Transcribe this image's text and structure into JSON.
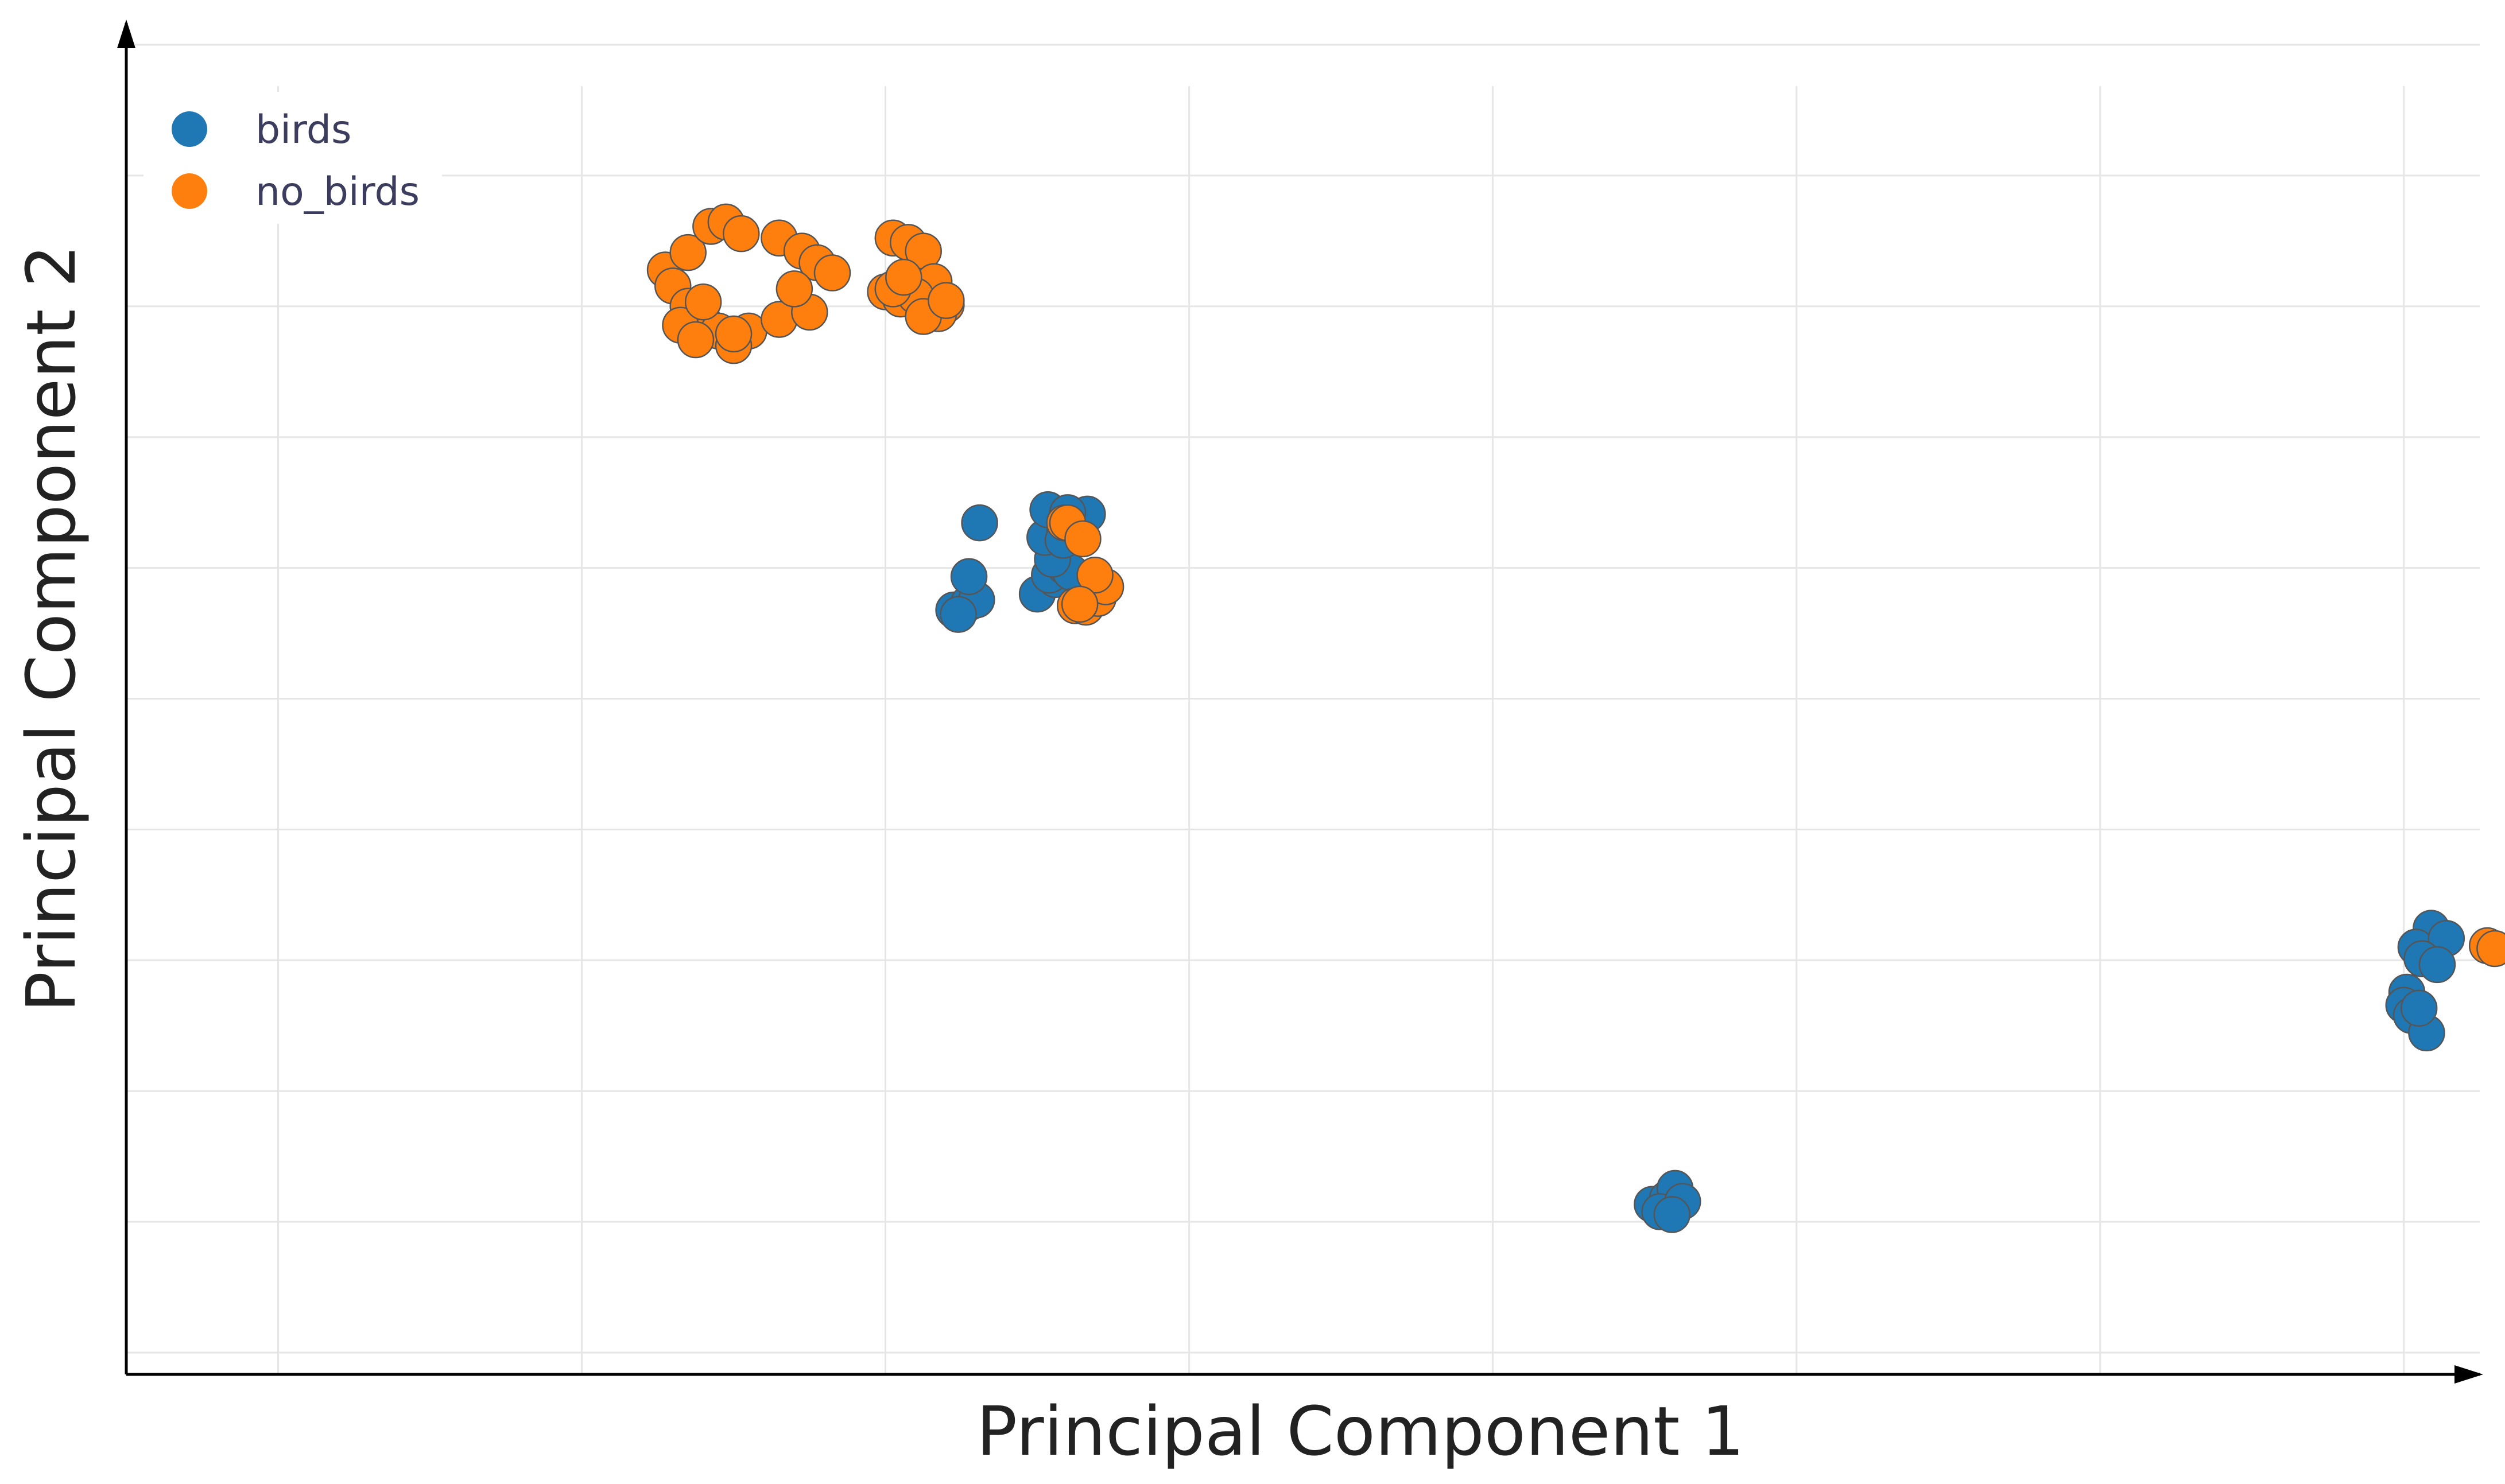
{
  "chart_data": {
    "type": "scatter",
    "title": "",
    "xlabel": "Principal Component 1",
    "ylabel": "Principal Component 2",
    "xlim": [
      0,
      15.5
    ],
    "ylim": [
      0,
      9.3
    ],
    "grid": true,
    "legend_position": "top-left",
    "colors": {
      "birds": "#1f77b4",
      "no_birds": "#ff7f0e",
      "grid": "#e6e6e6",
      "axis": "#000000",
      "label": "#222222",
      "legend_text": "#3c3c5e",
      "marker_edge": "#555555"
    },
    "series": [
      {
        "name": "birds",
        "x": [
          5.5,
          5.45,
          5.55,
          5.6,
          5.48,
          6.0,
          6.12,
          6.08,
          6.18,
          6.22,
          6.1,
          6.05,
          6.18,
          5.55,
          5.62,
          6.07,
          6.33,
          6.17,
          6.2,
          10.05,
          10.15,
          10.2,
          10.1,
          10.25,
          10.18,
          15.18,
          15.08,
          15.28,
          15.02,
          15.12,
          15.22,
          15.0,
          15.05,
          15.15,
          15.1
        ],
        "y": [
          5.27,
          5.26,
          5.31,
          5.33,
          5.23,
          5.37,
          5.47,
          5.5,
          5.56,
          5.52,
          5.61,
          5.76,
          5.79,
          5.49,
          5.86,
          5.95,
          5.92,
          5.74,
          5.93,
          1.17,
          1.21,
          1.28,
          1.12,
          1.19,
          1.1,
          3.07,
          2.94,
          3.0,
          2.63,
          2.86,
          2.82,
          2.54,
          2.47,
          2.35,
          2.52
        ]
      },
      {
        "name": "no_birds",
        "x": [
          3.55,
          3.7,
          3.85,
          3.95,
          4.05,
          4.3,
          4.45,
          4.55,
          4.65,
          3.6,
          3.7,
          3.8,
          3.9,
          4.1,
          4.3,
          4.5,
          5.05,
          5.15,
          5.25,
          5.32,
          5.0,
          5.1,
          5.4,
          5.2,
          5.35,
          3.65,
          3.75,
          4.0,
          4.4,
          5.05,
          6.25,
          6.32,
          6.4,
          6.45,
          6.38,
          6.28,
          5.12,
          5.25,
          5.4,
          3.8,
          4.0
        ],
        "y": [
          7.6,
          7.72,
          7.9,
          7.93,
          7.85,
          7.82,
          7.73,
          7.65,
          7.58,
          7.49,
          7.35,
          7.25,
          7.18,
          7.18,
          7.26,
          7.31,
          7.82,
          7.79,
          7.73,
          7.52,
          7.45,
          7.4,
          7.36,
          7.42,
          7.3,
          7.22,
          7.12,
          7.08,
          7.47,
          7.47,
          5.29,
          5.28,
          5.34,
          5.42,
          5.5,
          5.3,
          7.55,
          7.28,
          7.39,
          7.38,
          7.16
        ]
      },
      {
        "name": "no_birds",
        "x": [
          6.18,
          6.2,
          6.3,
          15.55,
          15.6
        ],
        "y": [
          5.86,
          5.86,
          5.75,
          2.95,
          2.93
        ]
      }
    ],
    "legend": [
      {
        "label": "birds",
        "series": "birds"
      },
      {
        "label": "no_birds",
        "series": "no_birds"
      }
    ]
  }
}
